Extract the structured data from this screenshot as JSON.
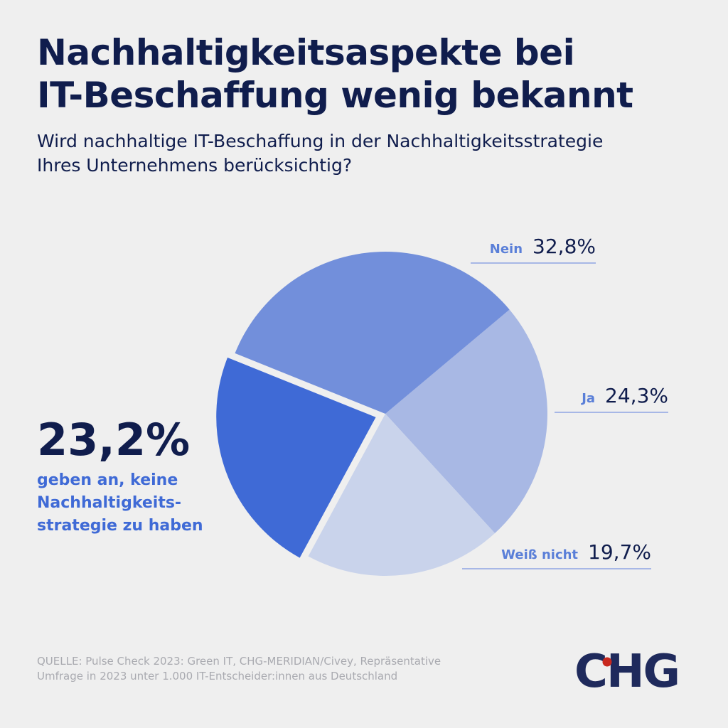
{
  "title_lines": [
    "Nachhaltigkeitsaspekte bei",
    "IT-Beschaffung wenig bekannt"
  ],
  "subtitle_lines": [
    "Wird nachhaltige IT-Beschaffung in der Nachhaltigkeitsstrategie",
    "Ihres Unternehmens berücksichtig?"
  ],
  "chart_data": {
    "type": "pie",
    "title": "Nachhaltigkeitsaspekte bei IT-Beschaffung wenig bekannt",
    "slices": [
      {
        "label": "Ja",
        "value": 24.3,
        "display": "24,3%",
        "color": "#a8b8e4"
      },
      {
        "label": "Weiß nicht",
        "value": 19.7,
        "display": "19,7%",
        "color": "#c9d3eb"
      },
      {
        "label": "",
        "value": 23.2,
        "display": "23,2%",
        "color": "#3f6ad6",
        "exploded": true
      },
      {
        "label": "Nein",
        "value": 32.8,
        "display": "32,8%",
        "color": "#728fdb"
      }
    ]
  },
  "callout": {
    "value": "23,2%",
    "text_lines": [
      "geben an, keine",
      "Nachhaltigkeits-",
      "strategie zu haben"
    ]
  },
  "source_lines": [
    "QUELLE: Pulse Check 2023: Green IT, CHG-MERIDIAN/Civey, Repräsentative",
    "Umfrage in 2023 unter 1.000 IT-Entscheider:innen aus Deutschland"
  ],
  "logo": {
    "text": "CHG",
    "color": "#1f2a5c",
    "dot_color": "#c8281e"
  },
  "colors": {
    "background": "#efefef",
    "title": "#101d4d",
    "accent": "#3f6ad6"
  }
}
